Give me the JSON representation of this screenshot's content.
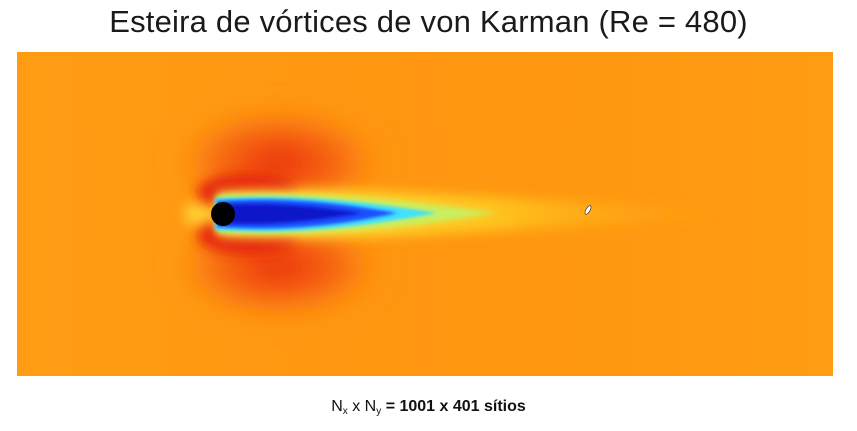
{
  "title": "Esteira de vórtices de von Karman (Re = 480)",
  "caption": {
    "n_symbol": "N",
    "x_subscript": "x",
    "times": "x",
    "y_subscript": "y",
    "equals": "=",
    "grid_size": "1001 x 401 sítios"
  },
  "colors": {
    "background_flow": "#ff9a10",
    "high_velocity": "#f04010",
    "low_velocity": "#1a3af0",
    "wake_core": "#0a10c0",
    "wake_edge": "#30d0ff",
    "wake_tail": "#ffe020",
    "obstacle": "#000000"
  }
}
